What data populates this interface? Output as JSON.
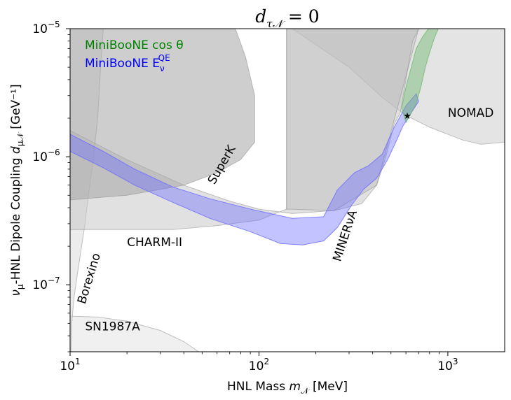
{
  "chart_data": {
    "type": "area",
    "title": "d_τN = 0",
    "title_parts": {
      "sym": "d",
      "sub": "τ𝒩",
      "rest": " = 0"
    },
    "xlabel": "HNL Mass m_N [MeV]",
    "xlabel_parts": {
      "main": "HNL Mass ",
      "sym": "m",
      "sub": "𝒩",
      "unit": " [MeV]"
    },
    "ylabel": "ν_μ-HNL Dipole Coupling d_μN [GeV⁻¹]",
    "ylabel_parts": {
      "nu": "ν",
      "nu_sub": "μ",
      "mid": "-HNL Dipole Coupling ",
      "sym": "d",
      "sub": "μ𝒩",
      "unit": " [GeV⁻¹]"
    },
    "x_scale": "log",
    "y_scale": "log",
    "xlim": [
      10,
      2000
    ],
    "ylim": [
      3e-08,
      1e-05
    ],
    "x_ticks": [
      {
        "value": 10,
        "base": "10",
        "exp": "1"
      },
      {
        "value": 100,
        "base": "10",
        "exp": "2"
      },
      {
        "value": 1000,
        "base": "10",
        "exp": "3"
      }
    ],
    "y_ticks": [
      {
        "value": 1e-07,
        "base": "10",
        "exp": "−7"
      },
      {
        "value": 1e-06,
        "base": "10",
        "exp": "−6"
      },
      {
        "value": 1e-05,
        "base": "10",
        "exp": "−5"
      }
    ],
    "grid": false,
    "legend_position": "top-left",
    "legend": [
      {
        "label": "MiniBooNE cos θ",
        "color": "#008000"
      },
      {
        "label_main": "MiniBooNE E",
        "label_sub": "ν",
        "label_sup": "QE",
        "color": "#0000ff"
      }
    ],
    "exclusion_regions": [
      {
        "name": "NOMAD",
        "color": "#d9d9d9",
        "opacity": 0.7,
        "boundary": [
          [
            150,
            1e-05
          ],
          [
            300,
            5e-06
          ],
          [
            450,
            2.9e-06
          ],
          [
            600,
            2.1e-06
          ],
          [
            800,
            1.7e-06
          ],
          [
            1200,
            1.35e-06
          ],
          [
            1500,
            1.25e-06
          ],
          [
            2000,
            1.3e-06
          ],
          [
            2000,
            1e-05
          ]
        ]
      },
      {
        "name": "SN1987A",
        "color": "#e6e6e6",
        "opacity": 0.6,
        "boundary": [
          [
            10,
            5.7e-08
          ],
          [
            14,
            5.6e-08
          ],
          [
            20,
            5.2e-08
          ],
          [
            30,
            4.4e-08
          ],
          [
            40,
            3.6e-08
          ],
          [
            48,
            3e-08
          ],
          [
            10,
            3e-08
          ]
        ]
      },
      {
        "name": "Borexino",
        "color": "#e0e0e0",
        "opacity": 0.6,
        "boundary": [
          [
            10,
            3e-08
          ],
          [
            10,
            1e-05
          ],
          [
            15,
            1e-05
          ],
          [
            14.5,
            5e-06
          ],
          [
            14,
            2e-06
          ],
          [
            13.2,
            9e-07
          ],
          [
            12.5,
            5e-07
          ],
          [
            12,
            3e-07
          ],
          [
            11.5,
            2e-07
          ],
          [
            11,
            1.3e-07
          ],
          [
            10.5,
            8e-08
          ],
          [
            10.2,
            5e-08
          ],
          [
            10.1,
            3e-08
          ]
        ]
      },
      {
        "name": "CHARM-II",
        "color": "#c8c8c8",
        "opacity": 0.55,
        "boundary": [
          [
            10,
            1.6e-06
          ],
          [
            20,
            9.5e-07
          ],
          [
            40,
            6e-07
          ],
          [
            70,
            4.5e-07
          ],
          [
            100,
            3.9e-07
          ],
          [
            150,
            3.6e-07
          ],
          [
            250,
            3.8e-07
          ],
          [
            350,
            4.3e-07
          ],
          [
            420,
            6e-07
          ],
          [
            470,
            1e-06
          ],
          [
            520,
            1.8e-06
          ],
          [
            560,
            2.2e-06
          ],
          [
            600,
            4e-06
          ],
          [
            650,
            8e-06
          ],
          [
            700,
            1e-05
          ],
          [
            140,
            1e-05
          ],
          [
            140,
            3.9e-07
          ],
          [
            100,
            3.2e-07
          ],
          [
            60,
            2.9e-07
          ],
          [
            35,
            2.7e-07
          ],
          [
            20,
            2.7e-07
          ],
          [
            10,
            2.7e-07
          ]
        ]
      },
      {
        "name": "SuperK",
        "color": "#a6a6a6",
        "opacity": 0.55,
        "boundary": [
          [
            10,
            4.6e-07
          ],
          [
            20,
            5e-07
          ],
          [
            40,
            6e-07
          ],
          [
            60,
            7.5e-07
          ],
          [
            80,
            9.5e-07
          ],
          [
            95,
            1.3e-06
          ],
          [
            95,
            3e-06
          ],
          [
            85,
            6e-06
          ],
          [
            75,
            1e-05
          ],
          [
            10,
            1e-05
          ]
        ]
      },
      {
        "name": "MINERνA",
        "color": "#b3b3b3",
        "opacity": 0.35,
        "boundary": [
          [
            140,
            1e-05
          ],
          [
            140,
            3.9e-07
          ],
          [
            250,
            3.8e-07
          ],
          [
            420,
            6e-07
          ],
          [
            700,
            1e-05
          ]
        ]
      }
    ],
    "bands": [
      {
        "name": "MiniBooNE E_ν^QE",
        "color": "#6a6aff",
        "opacity": 0.4,
        "upper": [
          [
            10,
            1.5e-06
          ],
          [
            15,
            1.1e-06
          ],
          [
            22,
            8e-07
          ],
          [
            35,
            5.8e-07
          ],
          [
            55,
            4.7e-07
          ],
          [
            90,
            3.9e-07
          ],
          [
            150,
            3.3e-07
          ],
          [
            220,
            3.4e-07
          ],
          [
            260,
            5.5e-07
          ],
          [
            320,
            7.5e-07
          ],
          [
            380,
            8.5e-07
          ],
          [
            450,
            1.05e-06
          ],
          [
            520,
            1.7e-06
          ],
          [
            600,
            2.5e-06
          ],
          [
            680,
            3.1e-06
          ]
        ],
        "lower": [
          [
            10,
            1.1e-06
          ],
          [
            15,
            8.2e-07
          ],
          [
            22,
            6e-07
          ],
          [
            35,
            4.4e-07
          ],
          [
            55,
            3.3e-07
          ],
          [
            90,
            2.6e-07
          ],
          [
            130,
            2.1e-07
          ],
          [
            170,
            2.05e-07
          ],
          [
            220,
            2.2e-07
          ],
          [
            260,
            2.8e-07
          ],
          [
            310,
            4.2e-07
          ],
          [
            360,
            5.6e-07
          ],
          [
            420,
            6.8e-07
          ],
          [
            480,
            9.5e-07
          ],
          [
            530,
            1.3e-06
          ],
          [
            580,
            1.75e-06
          ],
          [
            640,
            2.2e-06
          ],
          [
            700,
            2.7e-06
          ]
        ]
      },
      {
        "name": "MiniBooNE cos θ",
        "color": "#6fb86f",
        "opacity": 0.45,
        "upper": [
          [
            570,
            2.4e-06
          ],
          [
            600,
            3.5e-06
          ],
          [
            640,
            5e-06
          ],
          [
            680,
            7e-06
          ],
          [
            730,
            8.5e-06
          ],
          [
            790,
            1e-05
          ]
        ],
        "lower": [
          [
            600,
            1.85e-06
          ],
          [
            640,
            2.2e-06
          ],
          [
            680,
            2.6e-06
          ],
          [
            720,
            3.5e-06
          ],
          [
            760,
            5e-06
          ],
          [
            800,
            6.5e-06
          ],
          [
            850,
            8.5e-06
          ],
          [
            890,
            1e-05
          ]
        ]
      }
    ],
    "best_fit": {
      "x": 610,
      "y": 2.1e-06,
      "marker": "★"
    },
    "region_labels": [
      {
        "text": "NOMAD",
        "x": 1000,
        "y": 2.05e-06,
        "rotation": 0
      },
      {
        "text": "SuperK",
        "x": 58,
        "y": 6e-07,
        "rotation": -60
      },
      {
        "text": "CHARM-II",
        "x": 20,
        "y": 2e-07,
        "rotation": 0
      },
      {
        "text": "MINERνA",
        "x": 270,
        "y": 1.5e-07,
        "rotation": -72
      },
      {
        "text": "Borexino",
        "x": 12,
        "y": 7e-08,
        "rotation": -73
      },
      {
        "text": "SN1987A",
        "x": 12,
        "y": 4.4e-08,
        "rotation": 0
      }
    ]
  }
}
